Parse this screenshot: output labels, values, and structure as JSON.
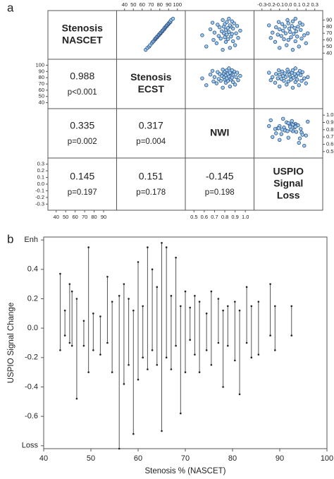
{
  "panel_a": {
    "label": "a",
    "variables": [
      {
        "lines": [
          "Stenosis",
          "NASCET"
        ],
        "lim": [
          35,
          100
        ],
        "ticks": [
          40,
          50,
          60,
          70,
          80,
          90
        ],
        "values": [
          45,
          48,
          50,
          52,
          55,
          57,
          58,
          60,
          61,
          62,
          63,
          64,
          65,
          66,
          67,
          68,
          69,
          70,
          70,
          71,
          72,
          73,
          74,
          75,
          76,
          77,
          78,
          79,
          80,
          80,
          81,
          82,
          83,
          84,
          85,
          86,
          87,
          88,
          90,
          92
        ]
      },
      {
        "lines": [
          "Stenosis",
          "ECST"
        ],
        "lim": [
          35,
          105
        ],
        "ticks": [
          40,
          50,
          60,
          70,
          80,
          90,
          100
        ],
        "values": [
          64,
          66,
          68,
          69,
          71,
          72,
          73,
          74,
          75,
          75,
          76,
          77,
          77,
          78,
          79,
          79,
          80,
          81,
          81,
          81,
          82,
          83,
          83,
          84,
          85,
          85,
          86,
          86,
          87,
          87,
          88,
          88,
          89,
          90,
          90,
          91,
          92,
          92,
          93,
          95
        ]
      },
      {
        "lines": [
          "NWI"
        ],
        "lim": [
          0.45,
          1.05
        ],
        "ticks": [
          0.5,
          0.6,
          0.7,
          0.8,
          0.9,
          {
            "value": 1,
            "label": "1.0"
          }
        ],
        "values": [
          0.78,
          0.85,
          0.62,
          0.9,
          0.72,
          0.81,
          0.88,
          0.69,
          0.83,
          0.76,
          0.93,
          0.8,
          0.86,
          0.74,
          0.58,
          0.82,
          0.87,
          0.79,
          0.91,
          0.7,
          0.84,
          0.77,
          0.95,
          0.81,
          0.66,
          0.88,
          0.83,
          0.75,
          0.86,
          0.79,
          0.92,
          0.85,
          0.73,
          0.8,
          0.89,
          0.68,
          0.82,
          0.87,
          0.78,
          0.84
        ]
      },
      {
        "lines": [
          "USPIO",
          "Signal",
          "Loss"
        ],
        "lim": [
          -0.35,
          0.35
        ],
        "ticks": [
          -0.3,
          -0.2,
          -0.1,
          {
            "value": 0,
            "label": "0.0"
          },
          0.1,
          0.2,
          0.3
        ],
        "values": [
          0.05,
          -0.1,
          0.12,
          -0.02,
          0.2,
          -0.15,
          0.08,
          0.0,
          -0.05,
          0.15,
          -0.2,
          0.03,
          0.1,
          -0.08,
          0.18,
          -0.12,
          0.06,
          -0.03,
          0.22,
          -0.18,
          0.02,
          0.09,
          -0.06,
          0.14,
          -0.1,
          0.01,
          0.07,
          -0.14,
          0.11,
          -0.04,
          0.04,
          -0.22,
          0.16,
          -0.07,
          0.0,
          0.13,
          -0.11,
          0.05,
          -0.01,
          0.08
        ]
      }
    ],
    "correlations": [
      [
        {
          "r": 0.988,
          "p": "p<0.001"
        }
      ],
      [
        {
          "r": 0.335,
          "p": "p=0.002"
        },
        {
          "r": 0.317,
          "p": "p=0.004"
        }
      ],
      [
        {
          "r": 0.145,
          "p": "p=0.197"
        },
        {
          "r": 0.151,
          "p": "p=0.178"
        },
        {
          "r": -0.145,
          "p": "p=0.198"
        }
      ]
    ]
  },
  "panel_b": {
    "label": "b",
    "type": "range",
    "xlabel": "Stenosis % (NASCET)",
    "ylabel": "USPIO Signal Change",
    "xlim": [
      40,
      100
    ],
    "xticks": [
      40,
      50,
      60,
      70,
      80,
      90,
      100
    ],
    "ylim": [
      -0.82,
      0.62
    ],
    "yticks": [
      {
        "value": 0.6,
        "label": "Enh"
      },
      0.4,
      0.2,
      {
        "value": 0,
        "label": "0.0"
      },
      -0.2,
      -0.4,
      -0.6,
      {
        "value": -0.8,
        "label": "Loss"
      }
    ],
    "x": [
      43.5,
      44.5,
      45.5,
      46,
      47,
      48.5,
      49.5,
      50.5,
      52,
      53.5,
      54.5,
      56,
      57,
      58,
      59,
      60,
      61,
      62,
      63,
      64,
      65,
      66,
      67,
      68,
      69,
      70,
      71,
      72,
      73,
      74.5,
      75.5,
      77,
      78,
      79,
      80.5,
      81.5,
      83,
      84,
      85.5,
      88,
      89,
      92.5
    ],
    "low": [
      -0.15,
      -0.05,
      -0.1,
      -0.12,
      -0.48,
      -0.12,
      -0.3,
      -0.15,
      -0.18,
      -0.1,
      -0.3,
      -0.82,
      -0.38,
      -0.25,
      -0.72,
      -0.35,
      -0.2,
      -0.28,
      -0.15,
      -0.25,
      -0.7,
      -0.2,
      -0.28,
      -0.12,
      -0.58,
      -0.3,
      -0.08,
      -0.18,
      -0.3,
      -0.15,
      -0.25,
      -0.1,
      -0.4,
      -0.12,
      -0.22,
      -0.45,
      -0.1,
      -0.2,
      -0.18,
      -0.05,
      -0.15,
      -0.05
    ],
    "high": [
      0.37,
      0.12,
      0.3,
      0.25,
      0.2,
      0.05,
      0.55,
      0.1,
      0.08,
      0.35,
      0.18,
      0.22,
      0.3,
      0.2,
      0.12,
      0.45,
      0.15,
      0.55,
      0.4,
      0.28,
      0.58,
      0.55,
      0.22,
      0.48,
      0.15,
      0.25,
      0.14,
      0.22,
      0.18,
      0.1,
      0.25,
      0.2,
      0.12,
      0.15,
      0.18,
      0.12,
      0.28,
      0.15,
      0.18,
      0.3,
      0.15,
      0.15
    ]
  }
}
